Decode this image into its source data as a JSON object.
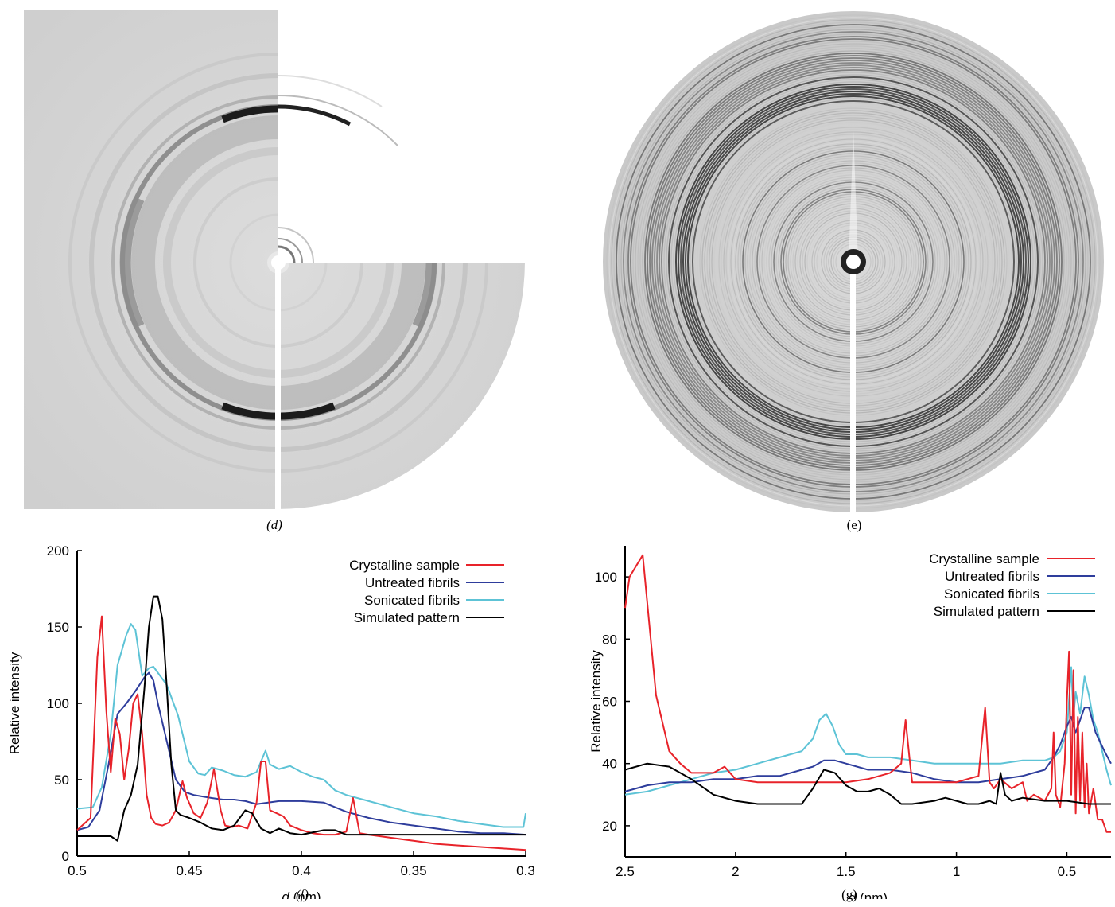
{
  "panels": {
    "d_label": "(d)",
    "e_label": "(e)",
    "f_label": "(f)",
    "g_label": "(g)"
  },
  "colors": {
    "crystalline": "#e8232a",
    "untreated": "#2e3d9c",
    "sonicated": "#5dc3d6",
    "simulated": "#000000"
  },
  "chart_data": [
    {
      "id": "f",
      "type": "line",
      "xlabel_italic": "d",
      "xlabel_unit": " (nm)",
      "ylabel": "Relative intensity",
      "xlim": [
        0.5,
        0.3
      ],
      "ylim": [
        0,
        200
      ],
      "xticks": [
        0.5,
        0.45,
        0.4,
        0.35,
        0.3
      ],
      "xtick_labels": [
        "0.5",
        "0.45",
        "0.4",
        "0.35",
        "0.3"
      ],
      "yticks": [
        0,
        50,
        100,
        150,
        200
      ],
      "ytick_labels": [
        "0",
        "50",
        "100",
        "150",
        "200"
      ],
      "legend_position": "top-right",
      "series": [
        {
          "name": "Crystalline sample",
          "color_key": "crystalline",
          "x": [
            0.5,
            0.494,
            0.491,
            0.489,
            0.487,
            0.485,
            0.483,
            0.481,
            0.479,
            0.477,
            0.475,
            0.473,
            0.471,
            0.469,
            0.467,
            0.465,
            0.462,
            0.459,
            0.456,
            0.453,
            0.451,
            0.448,
            0.445,
            0.442,
            0.439,
            0.436,
            0.434,
            0.431,
            0.428,
            0.424,
            0.42,
            0.418,
            0.416,
            0.414,
            0.411,
            0.408,
            0.405,
            0.4,
            0.395,
            0.39,
            0.385,
            0.38,
            0.377,
            0.374,
            0.37,
            0.36,
            0.35,
            0.34,
            0.33,
            0.32,
            0.31,
            0.3
          ],
          "y": [
            17,
            25,
            130,
            157,
            95,
            55,
            90,
            80,
            50,
            70,
            100,
            106,
            80,
            40,
            25,
            21,
            20,
            22,
            30,
            49,
            38,
            28,
            25,
            35,
            57,
            30,
            20,
            19,
            20,
            18,
            35,
            62,
            62,
            30,
            28,
            26,
            20,
            17,
            15,
            14,
            14,
            16,
            38,
            15,
            14,
            12,
            10,
            8,
            7,
            6,
            5,
            4
          ]
        },
        {
          "name": "Untreated fibrils",
          "color_key": "untreated",
          "x": [
            0.5,
            0.495,
            0.49,
            0.486,
            0.482,
            0.478,
            0.474,
            0.47,
            0.468,
            0.466,
            0.464,
            0.46,
            0.456,
            0.452,
            0.448,
            0.444,
            0.44,
            0.435,
            0.43,
            0.425,
            0.42,
            0.41,
            0.4,
            0.39,
            0.38,
            0.37,
            0.36,
            0.35,
            0.34,
            0.33,
            0.32,
            0.31,
            0.3
          ],
          "y": [
            17,
            19,
            30,
            60,
            93,
            100,
            108,
            117,
            120,
            115,
            100,
            75,
            50,
            42,
            40,
            39,
            38,
            37,
            37,
            36,
            34,
            36,
            36,
            35,
            29,
            25,
            22,
            20,
            18,
            16,
            15,
            15,
            14
          ]
        },
        {
          "name": "Sonicated fibrils",
          "color_key": "sonicated",
          "x": [
            0.5,
            0.493,
            0.489,
            0.485,
            0.482,
            0.478,
            0.476,
            0.474,
            0.471,
            0.468,
            0.466,
            0.463,
            0.46,
            0.455,
            0.45,
            0.446,
            0.443,
            0.44,
            0.435,
            0.43,
            0.425,
            0.42,
            0.416,
            0.414,
            0.41,
            0.405,
            0.4,
            0.395,
            0.39,
            0.385,
            0.38,
            0.37,
            0.36,
            0.35,
            0.34,
            0.33,
            0.32,
            0.31,
            0.301,
            0.3
          ],
          "y": [
            31,
            32,
            45,
            80,
            125,
            145,
            152,
            148,
            118,
            123,
            124,
            118,
            112,
            92,
            62,
            54,
            53,
            58,
            56,
            53,
            52,
            55,
            69,
            60,
            57,
            59,
            55,
            52,
            50,
            43,
            40,
            36,
            32,
            28,
            26,
            23,
            21,
            19,
            19,
            28
          ]
        },
        {
          "name": "Simulated pattern",
          "color_key": "simulated",
          "x": [
            0.5,
            0.49,
            0.485,
            0.482,
            0.479,
            0.476,
            0.473,
            0.47,
            0.468,
            0.466,
            0.464,
            0.462,
            0.46,
            0.458,
            0.456,
            0.454,
            0.45,
            0.445,
            0.44,
            0.435,
            0.43,
            0.425,
            0.422,
            0.418,
            0.414,
            0.41,
            0.405,
            0.4,
            0.39,
            0.385,
            0.38,
            0.37,
            0.35,
            0.33,
            0.3
          ],
          "y": [
            13,
            13,
            13,
            10,
            30,
            40,
            60,
            110,
            150,
            170,
            170,
            155,
            110,
            60,
            30,
            27,
            25,
            22,
            18,
            17,
            20,
            30,
            28,
            18,
            15,
            18,
            15,
            14,
            17,
            17,
            14,
            14,
            14,
            14,
            14
          ]
        }
      ]
    },
    {
      "id": "g",
      "type": "line",
      "xlabel_italic": "d",
      "xlabel_unit": " (nm)",
      "ylabel": "Relative intensity",
      "xlim": [
        2.5,
        0.3
      ],
      "ylim": [
        10,
        110
      ],
      "xticks": [
        2.5,
        2,
        1.5,
        1,
        0.5
      ],
      "xtick_labels": [
        "2.5",
        "2",
        "1.5",
        "1",
        "0.5"
      ],
      "yticks": [
        20,
        40,
        60,
        80,
        100
      ],
      "ytick_labels": [
        "20",
        "40",
        "60",
        "80",
        "100"
      ],
      "legend_position": "top-right",
      "series": [
        {
          "name": "Crystalline sample",
          "color_key": "crystalline",
          "x": [
            2.5,
            2.48,
            2.42,
            2.36,
            2.3,
            2.25,
            2.2,
            2.1,
            2.05,
            2.0,
            1.9,
            1.8,
            1.7,
            1.6,
            1.5,
            1.4,
            1.3,
            1.25,
            1.23,
            1.21,
            1.2,
            1.1,
            1.0,
            0.9,
            0.87,
            0.85,
            0.83,
            0.8,
            0.75,
            0.7,
            0.68,
            0.65,
            0.6,
            0.57,
            0.56,
            0.55,
            0.53,
            0.51,
            0.5,
            0.49,
            0.48,
            0.47,
            0.46,
            0.45,
            0.44,
            0.43,
            0.42,
            0.41,
            0.4,
            0.38,
            0.36,
            0.34,
            0.32,
            0.3
          ],
          "y": [
            90,
            100,
            107,
            62,
            44,
            40,
            37,
            37,
            39,
            35,
            34,
            34,
            34,
            34,
            34,
            35,
            37,
            40,
            54,
            40,
            34,
            34,
            34,
            36,
            58,
            34,
            32,
            35,
            32,
            34,
            28,
            30,
            28,
            32,
            50,
            30,
            26,
            40,
            60,
            76,
            30,
            70,
            24,
            55,
            28,
            50,
            26,
            40,
            24,
            32,
            22,
            22,
            18,
            18
          ]
        },
        {
          "name": "Untreated fibrils",
          "color_key": "untreated",
          "x": [
            2.5,
            2.4,
            2.3,
            2.2,
            2.1,
            2.0,
            1.9,
            1.8,
            1.7,
            1.65,
            1.6,
            1.55,
            1.5,
            1.4,
            1.3,
            1.2,
            1.1,
            1.0,
            0.9,
            0.8,
            0.7,
            0.65,
            0.6,
            0.56,
            0.53,
            0.5,
            0.48,
            0.46,
            0.44,
            0.42,
            0.4,
            0.37,
            0.33,
            0.3
          ],
          "y": [
            31,
            33,
            34,
            34,
            35,
            35,
            36,
            36,
            38,
            39,
            41,
            41,
            40,
            38,
            38,
            37,
            35,
            34,
            34,
            35,
            36,
            37,
            38,
            42,
            46,
            52,
            55,
            50,
            54,
            58,
            58,
            50,
            44,
            40
          ]
        },
        {
          "name": "Sonicated fibrils",
          "color_key": "sonicated",
          "x": [
            2.5,
            2.4,
            2.3,
            2.2,
            2.1,
            2.0,
            1.9,
            1.8,
            1.7,
            1.65,
            1.62,
            1.59,
            1.56,
            1.53,
            1.5,
            1.45,
            1.4,
            1.3,
            1.2,
            1.1,
            1.0,
            0.9,
            0.8,
            0.7,
            0.6,
            0.56,
            0.53,
            0.5,
            0.48,
            0.47,
            0.46,
            0.44,
            0.42,
            0.4,
            0.38,
            0.36,
            0.34,
            0.32,
            0.3
          ],
          "y": [
            30,
            31,
            33,
            35,
            37,
            38,
            40,
            42,
            44,
            48,
            54,
            56,
            52,
            46,
            43,
            43,
            42,
            42,
            41,
            40,
            40,
            40,
            40,
            41,
            41,
            42,
            44,
            50,
            71,
            55,
            63,
            56,
            68,
            62,
            54,
            50,
            44,
            38,
            33
          ]
        },
        {
          "name": "Simulated pattern",
          "color_key": "simulated",
          "x": [
            2.5,
            2.4,
            2.3,
            2.2,
            2.1,
            2.0,
            1.9,
            1.8,
            1.7,
            1.65,
            1.6,
            1.55,
            1.5,
            1.45,
            1.4,
            1.35,
            1.3,
            1.25,
            1.2,
            1.1,
            1.05,
            1.0,
            0.95,
            0.9,
            0.85,
            0.82,
            0.8,
            0.78,
            0.75,
            0.7,
            0.6,
            0.5,
            0.4,
            0.3
          ],
          "y": [
            38,
            40,
            39,
            35,
            30,
            28,
            27,
            27,
            27,
            32,
            38,
            37,
            33,
            31,
            31,
            32,
            30,
            27,
            27,
            28,
            29,
            28,
            27,
            27,
            28,
            27,
            37,
            30,
            28,
            29,
            28,
            28,
            27,
            27
          ]
        }
      ]
    }
  ]
}
